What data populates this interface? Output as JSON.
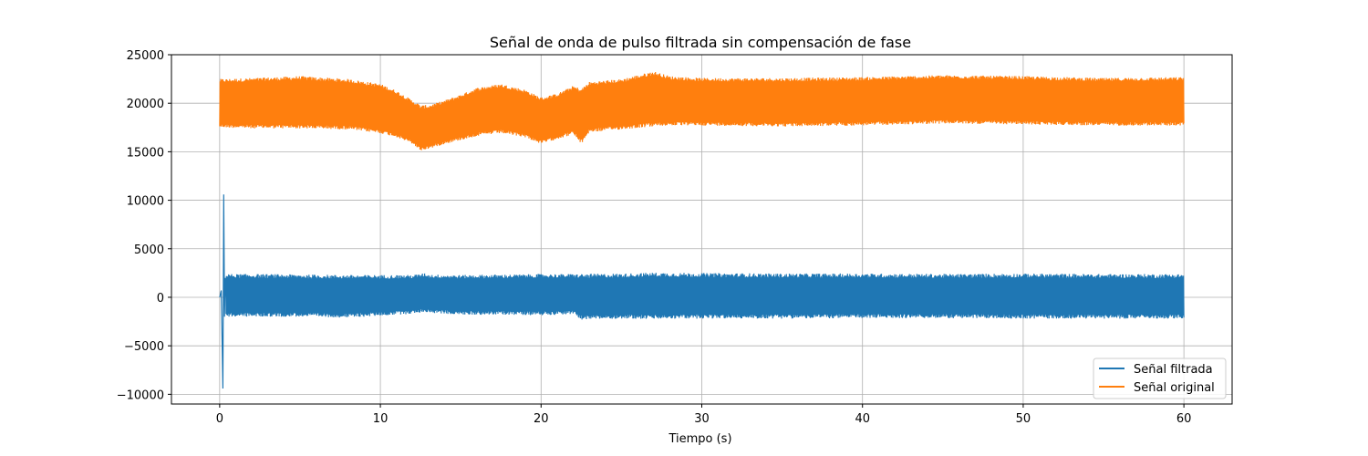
{
  "chart_data": {
    "type": "line",
    "title": "Señal de onda de pulso filtrada sin compensación de fase",
    "xlabel": "Tiempo (s)",
    "ylabel": "",
    "xlim": [
      -3,
      63
    ],
    "ylim": [
      -11000,
      25000
    ],
    "xticks": [
      0,
      10,
      20,
      30,
      40,
      50,
      60
    ],
    "xtick_labels": [
      "0",
      "10",
      "20",
      "30",
      "40",
      "50",
      "60"
    ],
    "yticks": [
      -10000,
      -5000,
      0,
      5000,
      10000,
      15000,
      20000,
      25000
    ],
    "ytick_labels": [
      "−10000",
      "−5000",
      "0",
      "5000",
      "10000",
      "15000",
      "20000",
      "25000"
    ],
    "grid": true,
    "legend_position": "bottom-right",
    "series": [
      {
        "name": "Señal filtrada",
        "color": "#1f77b4",
        "x_range": [
          0,
          60
        ],
        "envelope": {
          "x": [
            0.4,
            2,
            5,
            8,
            10,
            12,
            12.8,
            13,
            15,
            18,
            20,
            22,
            22.5,
            25,
            27,
            30,
            35,
            40,
            45,
            50,
            55,
            60
          ],
          "upper": [
            2400,
            2400,
            2350,
            2300,
            2300,
            2300,
            2500,
            2350,
            2300,
            2350,
            2400,
            2400,
            2400,
            2450,
            2550,
            2500,
            2450,
            2450,
            2400,
            2450,
            2400,
            2400
          ],
          "lower": [
            -2000,
            -2000,
            -2000,
            -2100,
            -1900,
            -1700,
            -1500,
            -1600,
            -1800,
            -1800,
            -1850,
            -1750,
            -2300,
            -2200,
            -2250,
            -2200,
            -2200,
            -2150,
            -2150,
            -2200,
            -2200,
            -2200
          ]
        },
        "transient": {
          "x": [
            0,
            0.1,
            0.2,
            0.25,
            0.3,
            0.35,
            0.4
          ],
          "y": [
            0,
            700,
            -9400,
            10600,
            -2000,
            2000,
            0
          ]
        }
      },
      {
        "name": "Señal original",
        "color": "#ff7f0e",
        "x_range": [
          0,
          60
        ],
        "envelope": {
          "x": [
            0,
            2,
            5,
            8,
            10,
            11,
            12,
            12.5,
            13,
            14,
            15,
            16,
            17.5,
            19,
            20,
            21,
            22,
            22.5,
            23,
            25,
            27,
            28,
            30,
            35,
            40,
            45,
            50,
            55,
            60
          ],
          "upper": [
            22500,
            22600,
            22800,
            22500,
            22000,
            21300,
            20300,
            19800,
            19800,
            20300,
            20900,
            21600,
            22000,
            21400,
            20600,
            21000,
            21800,
            21500,
            22200,
            22500,
            23300,
            22800,
            22600,
            22600,
            22700,
            22900,
            22800,
            22600,
            22700
          ],
          "lower": [
            17500,
            17400,
            17400,
            17300,
            16900,
            16500,
            15800,
            15100,
            15300,
            15800,
            16200,
            16600,
            16900,
            16500,
            15800,
            16300,
            16800,
            15800,
            17000,
            17300,
            17600,
            17700,
            17700,
            17600,
            17700,
            17900,
            17800,
            17700,
            17700
          ]
        }
      }
    ]
  }
}
